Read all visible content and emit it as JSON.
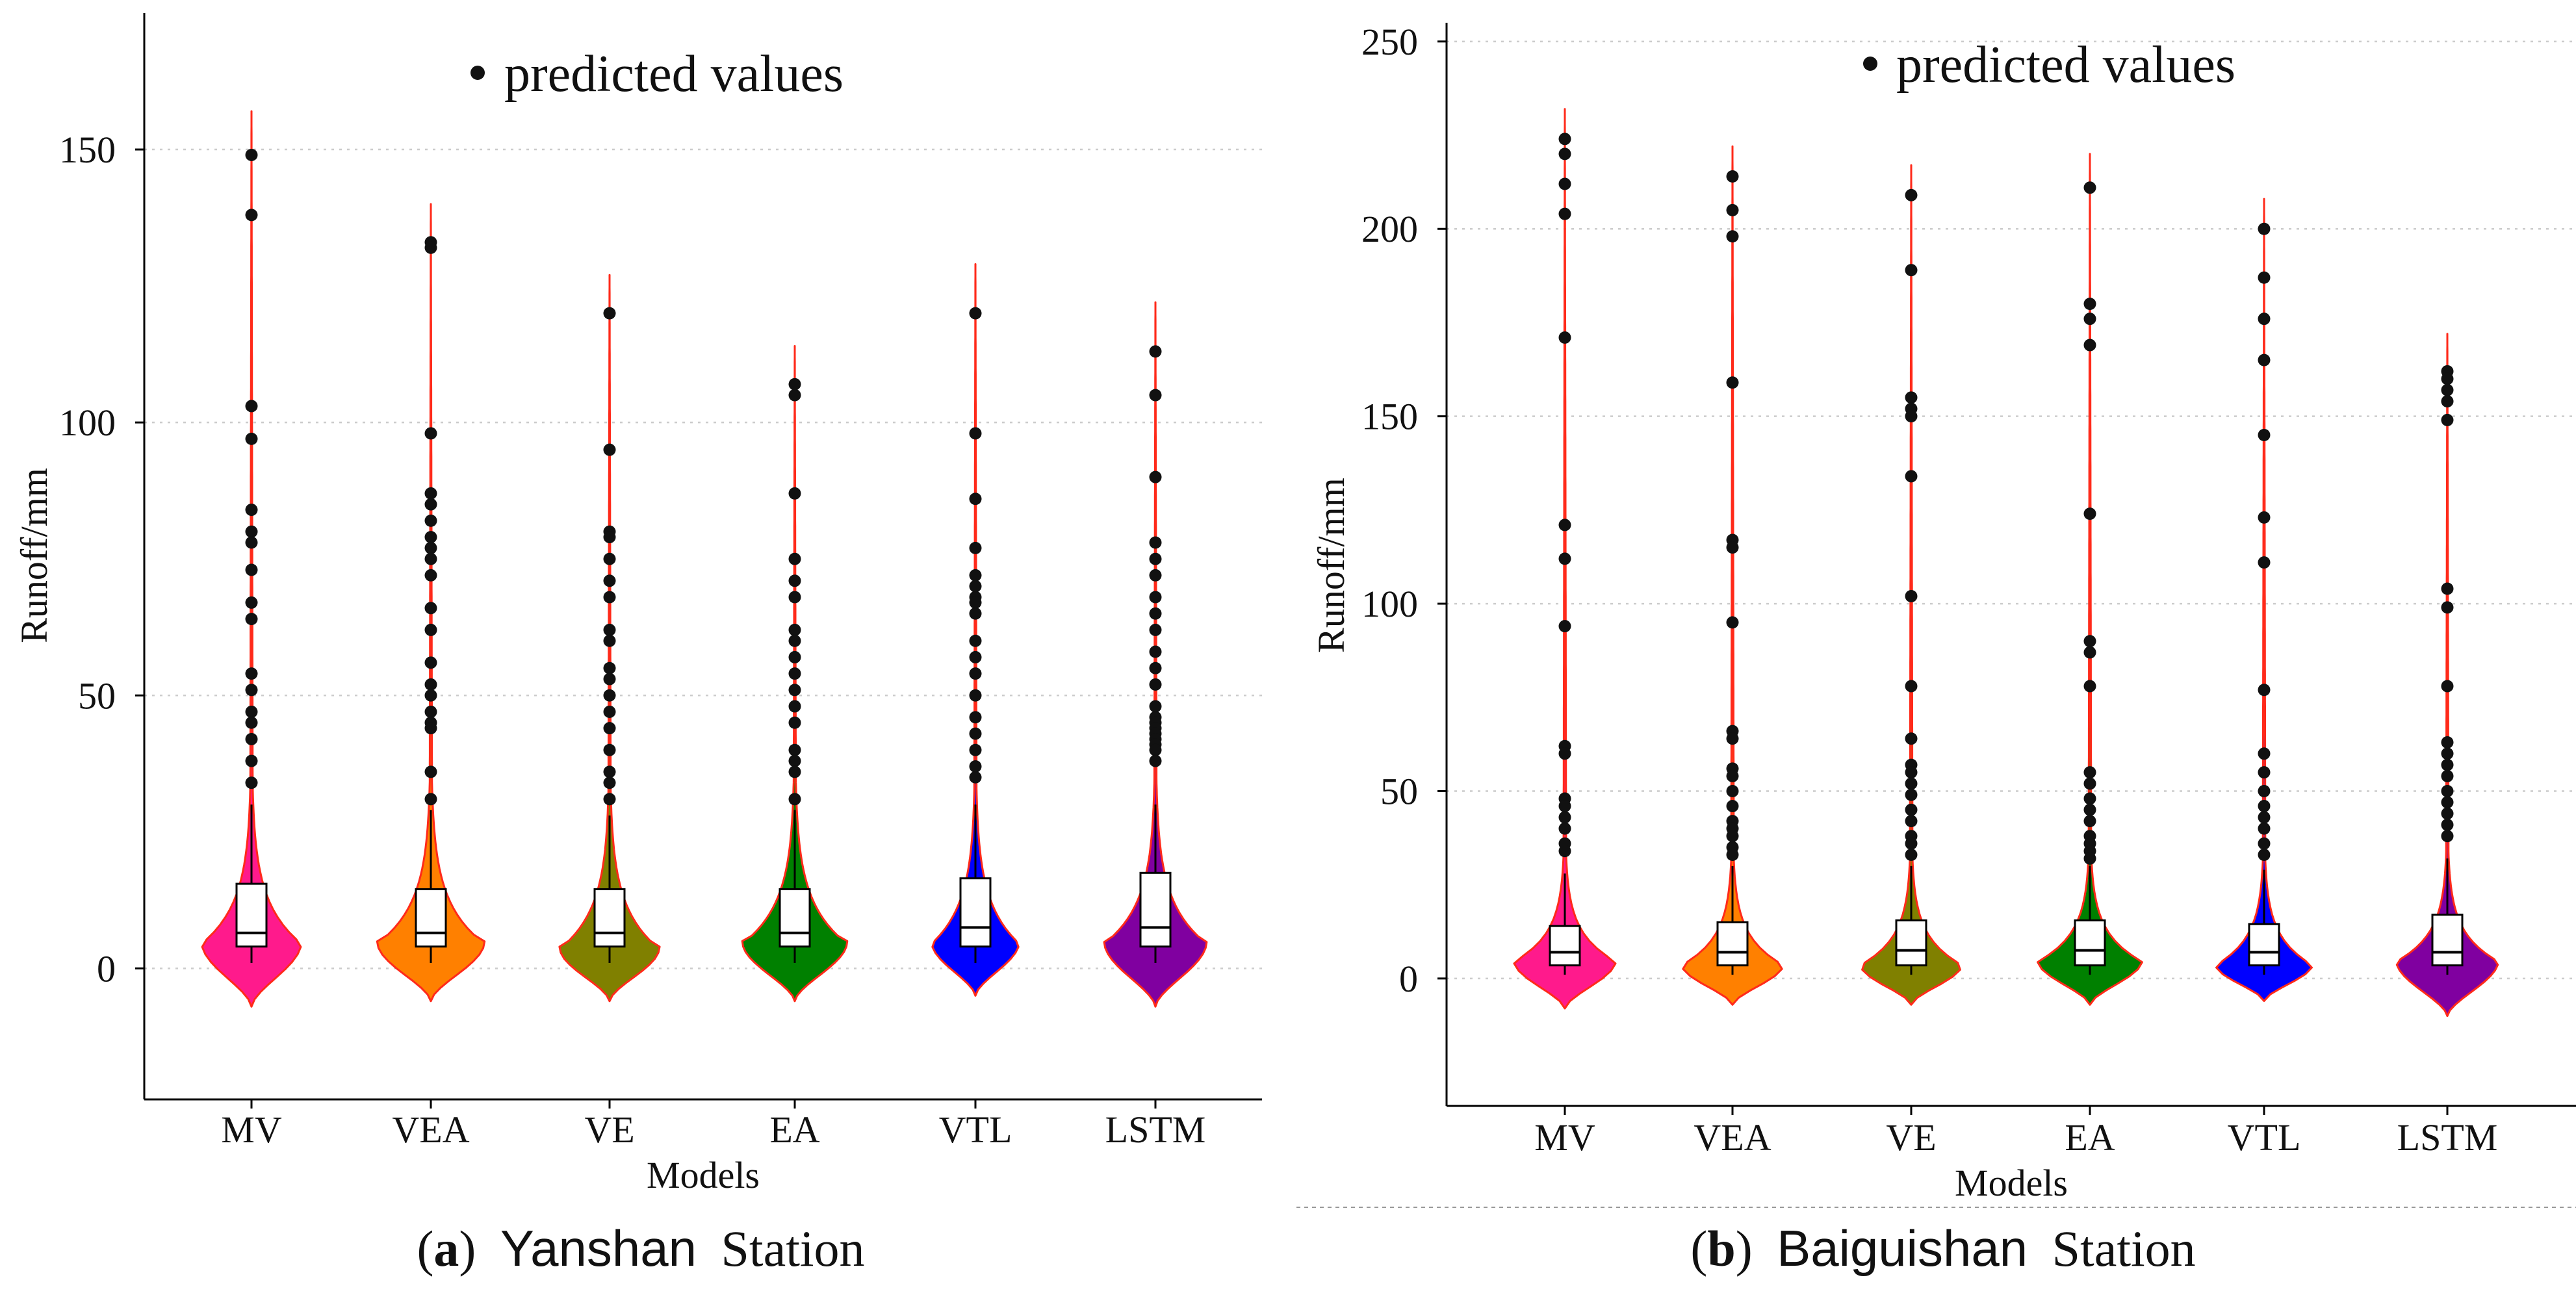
{
  "figure": {
    "captions": [
      {
        "letter": "a",
        "open": "(",
        "close": ")",
        "station": "Yanshan",
        "suffix": "Station"
      },
      {
        "letter": "b",
        "open": "(",
        "close": ")",
        "station": "Baiguishan",
        "suffix": "Station"
      }
    ]
  },
  "colors": {
    "violin_outline": "#ff2a1a",
    "MV": "#ff1a8c",
    "VEA": "#ff8000",
    "VE": "#808000",
    "EA": "#008000",
    "VTL": "#0000ff",
    "LSTM": "#8000a0",
    "box_fill": "#ffffff",
    "point": "#111111",
    "grid": "#cccccc"
  },
  "chart_data": [
    {
      "type": "violin",
      "panel": "a",
      "title": "Yanshan Station",
      "legend": "predicted values",
      "xlabel": "Models",
      "ylabel": "Runoff/mm",
      "ylim": [
        -24,
        175
      ],
      "yticks": [
        0,
        50,
        100,
        150
      ],
      "grid": "horizontal dotted",
      "categories": [
        "MV",
        "VEA",
        "VE",
        "EA",
        "VTL",
        "LSTM"
      ],
      "series": [
        {
          "name": "MV",
          "min": -7,
          "max": 157,
          "mode": 5,
          "width_at_mode": 0.82,
          "box": {
            "whisker_low": 1,
            "q1": 4,
            "median": 6.5,
            "q3": 15.5,
            "whisker_high": 30
          },
          "points": [
            149,
            138,
            103,
            97,
            84,
            80,
            78,
            73,
            67,
            64,
            54,
            51,
            47,
            45,
            42,
            38,
            34
          ]
        },
        {
          "name": "VEA",
          "min": -6,
          "max": 140,
          "mode": 5,
          "width_at_mode": 0.88,
          "box": {
            "whisker_low": 1,
            "q1": 4,
            "median": 6.5,
            "q3": 14.5,
            "whisker_high": 29
          },
          "points": [
            133,
            132,
            98,
            87,
            85,
            82,
            79,
            77,
            75,
            72,
            66,
            62,
            56,
            52,
            50,
            47,
            45,
            44,
            36,
            31
          ]
        },
        {
          "name": "VE",
          "min": -6,
          "max": 127,
          "mode": 4,
          "width_at_mode": 0.82,
          "box": {
            "whisker_low": 1,
            "q1": 4,
            "median": 6.5,
            "q3": 14.5,
            "whisker_high": 28
          },
          "points": [
            120,
            95,
            80,
            79,
            75,
            71,
            68,
            62,
            60,
            55,
            53,
            50,
            47,
            44,
            40,
            36,
            34,
            31
          ]
        },
        {
          "name": "EA",
          "min": -6,
          "max": 114,
          "mode": 5,
          "width_at_mode": 0.86,
          "box": {
            "whisker_low": 1,
            "q1": 4,
            "median": 6.5,
            "q3": 14.5,
            "whisker_high": 29
          },
          "points": [
            107,
            105,
            87,
            75,
            71,
            68,
            62,
            60,
            57,
            54,
            51,
            48,
            45,
            40,
            38,
            36,
            31
          ]
        },
        {
          "name": "VTL",
          "min": -5,
          "max": 129,
          "mode": 5,
          "width_at_mode": 0.72,
          "box": {
            "whisker_low": 1,
            "q1": 4,
            "median": 7.5,
            "q3": 16.5,
            "whisker_high": 30
          },
          "points": [
            120,
            98,
            86,
            77,
            72,
            70,
            68,
            67,
            65,
            60,
            57,
            54,
            50,
            46,
            43,
            40,
            37,
            35
          ]
        },
        {
          "name": "LSTM",
          "min": -7,
          "max": 122,
          "mode": 5,
          "width_at_mode": 0.84,
          "box": {
            "whisker_low": 1,
            "q1": 4,
            "median": 7.5,
            "q3": 17.5,
            "whisker_high": 30
          },
          "points": [
            113,
            105,
            90,
            78,
            75,
            72,
            68,
            65,
            62,
            58,
            55,
            52,
            48,
            46,
            45,
            44,
            43,
            42,
            41,
            40,
            38
          ]
        }
      ]
    },
    {
      "type": "violin",
      "panel": "b",
      "title": "Baiguishan Station",
      "legend": "predicted values",
      "xlabel": "Models",
      "ylabel": "Runoff/mm",
      "ylim": [
        -34,
        255
      ],
      "yticks": [
        0,
        50,
        100,
        150,
        200,
        250
      ],
      "grid": "horizontal dotted",
      "categories": [
        "MV",
        "VEA",
        "VE",
        "EA",
        "VTL",
        "LSTM"
      ],
      "series": [
        {
          "name": "MV",
          "min": -8,
          "max": 232,
          "mode": 5,
          "width_at_mode": 0.84,
          "box": {
            "whisker_low": 1,
            "q1": 3.5,
            "median": 7,
            "q3": 14,
            "whisker_high": 28
          },
          "points": [
            224,
            220,
            212,
            204,
            171,
            121,
            112,
            94,
            62,
            60,
            48,
            46,
            43,
            40,
            36,
            34
          ]
        },
        {
          "name": "VEA",
          "min": -7,
          "max": 222,
          "mode": 4,
          "width_at_mode": 0.84,
          "box": {
            "whisker_low": 1,
            "q1": 3.5,
            "median": 7,
            "q3": 15,
            "whisker_high": 30
          },
          "points": [
            214,
            205,
            198,
            159,
            117,
            115,
            95,
            66,
            64,
            56,
            54,
            50,
            46,
            42,
            40,
            38,
            35,
            33
          ]
        },
        {
          "name": "VE",
          "min": -7,
          "max": 217,
          "mode": 4,
          "width_at_mode": 0.84,
          "box": {
            "whisker_low": 1,
            "q1": 3.5,
            "median": 7.5,
            "q3": 15.5,
            "whisker_high": 30
          },
          "points": [
            209,
            189,
            155,
            152,
            150,
            134,
            102,
            78,
            64,
            57,
            55,
            52,
            49,
            45,
            42,
            38,
            36,
            33
          ]
        },
        {
          "name": "EA",
          "min": -7,
          "max": 220,
          "mode": 5,
          "width_at_mode": 0.86,
          "box": {
            "whisker_low": 1,
            "q1": 3.5,
            "median": 7.5,
            "q3": 15.5,
            "whisker_high": 30
          },
          "points": [
            211,
            180,
            176,
            169,
            124,
            90,
            87,
            78,
            55,
            52,
            48,
            45,
            42,
            38,
            36,
            34,
            32
          ]
        },
        {
          "name": "VTL",
          "min": -6,
          "max": 208,
          "mode": 4,
          "width_at_mode": 0.8,
          "box": {
            "whisker_low": 1,
            "q1": 3.5,
            "median": 7,
            "q3": 14.5,
            "whisker_high": 29
          },
          "points": [
            200,
            187,
            176,
            165,
            145,
            123,
            111,
            77,
            60,
            55,
            50,
            46,
            43,
            40,
            36,
            33
          ]
        },
        {
          "name": "LSTM",
          "min": -10,
          "max": 172,
          "mode": 5,
          "width_at_mode": 0.84,
          "box": {
            "whisker_low": 1,
            "q1": 3.5,
            "median": 7,
            "q3": 17,
            "whisker_high": 32
          },
          "points": [
            162,
            160,
            157,
            154,
            149,
            104,
            99,
            78,
            63,
            60,
            57,
            54,
            50,
            47,
            44,
            41,
            38
          ]
        }
      ]
    }
  ]
}
